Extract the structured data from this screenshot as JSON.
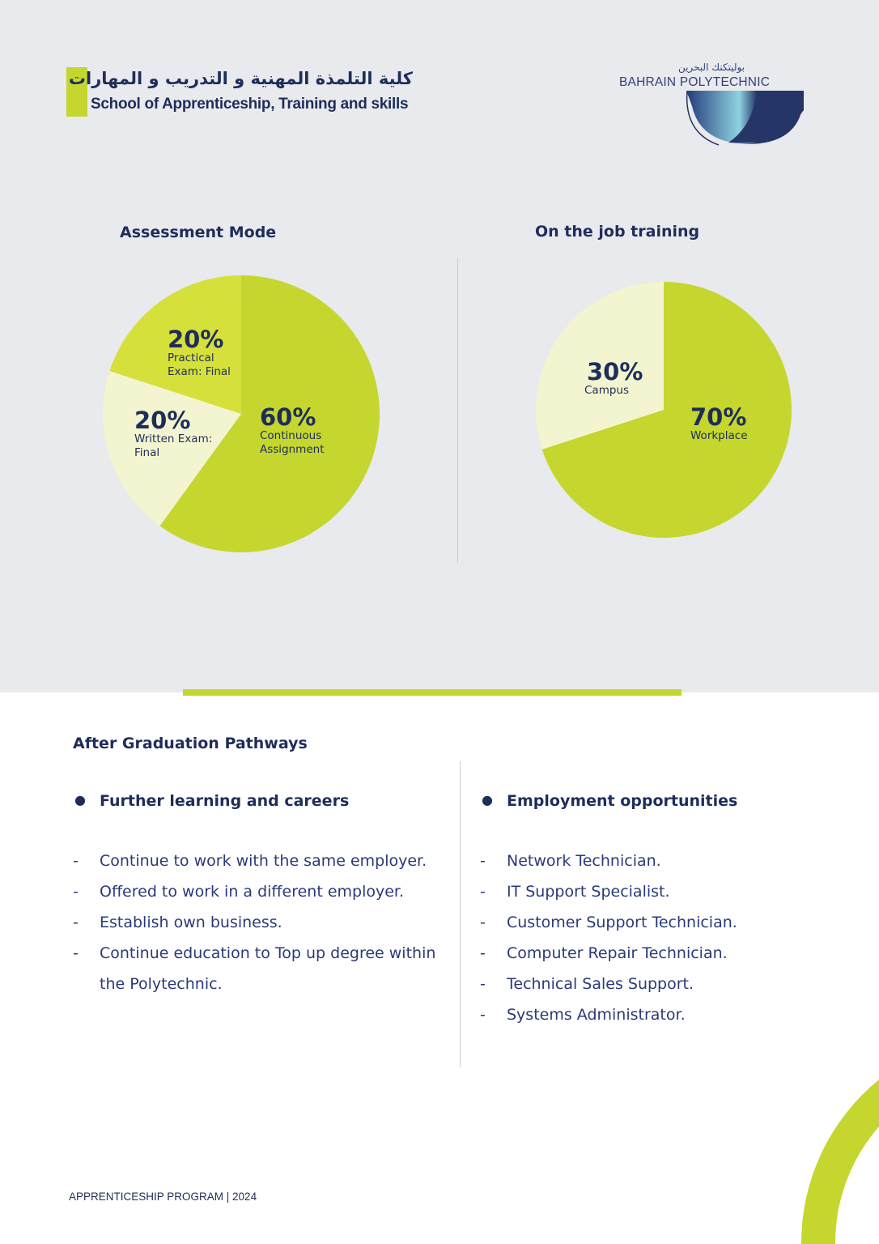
{
  "header": {
    "school_ar": "كلية التلمذة المهنية و التدريب و المهارات",
    "school_en": "School of Apprenticeship, Training and skills",
    "logo_ar": "بوليتكنك البحرين",
    "logo_en": "BAHRAIN POLYTECHNIC"
  },
  "colors": {
    "accent": "#c5d62e",
    "accent_bright": "#d6e03a",
    "pale": "#f2f5cf",
    "navy": "#1f2d5a",
    "background": "#e8eaed"
  },
  "chart_data": [
    {
      "type": "pie",
      "title": "Assessment Mode",
      "slices": [
        {
          "percent_label": "60%",
          "label": "Continuous Assignment",
          "value": 60,
          "color": "#c5d62e"
        },
        {
          "percent_label": "20%",
          "label": "Written Exam: Final",
          "value": 20,
          "color": "#f2f5cf"
        },
        {
          "percent_label": "20%",
          "label": "Practical Exam: Final",
          "value": 20,
          "color": "#d6e03a"
        }
      ]
    },
    {
      "type": "pie",
      "title": "On the job training",
      "slices": [
        {
          "percent_label": "70%",
          "label": "Workplace",
          "value": 70,
          "color": "#c5d62e"
        },
        {
          "percent_label": "30%",
          "label": "Campus",
          "value": 30,
          "color": "#f2f5cf"
        }
      ]
    }
  ],
  "pathways": {
    "title": "After Graduation Pathways",
    "left": {
      "heading": "Further learning and careers",
      "items": [
        "Continue to work with the same employer.",
        "Offered to work in a different employer.",
        "Establish own business.",
        "Continue education to Top up degree within the Polytechnic."
      ]
    },
    "right": {
      "heading": "Employment opportunities",
      "items": [
        "Network Technician.",
        "IT Support Specialist.",
        "Customer Support Technician.",
        "Computer Repair Technician.",
        "Technical Sales Support.",
        "Systems Administrator."
      ]
    }
  },
  "footer": "APPRENTICESHIP PROGRAM | 2024"
}
